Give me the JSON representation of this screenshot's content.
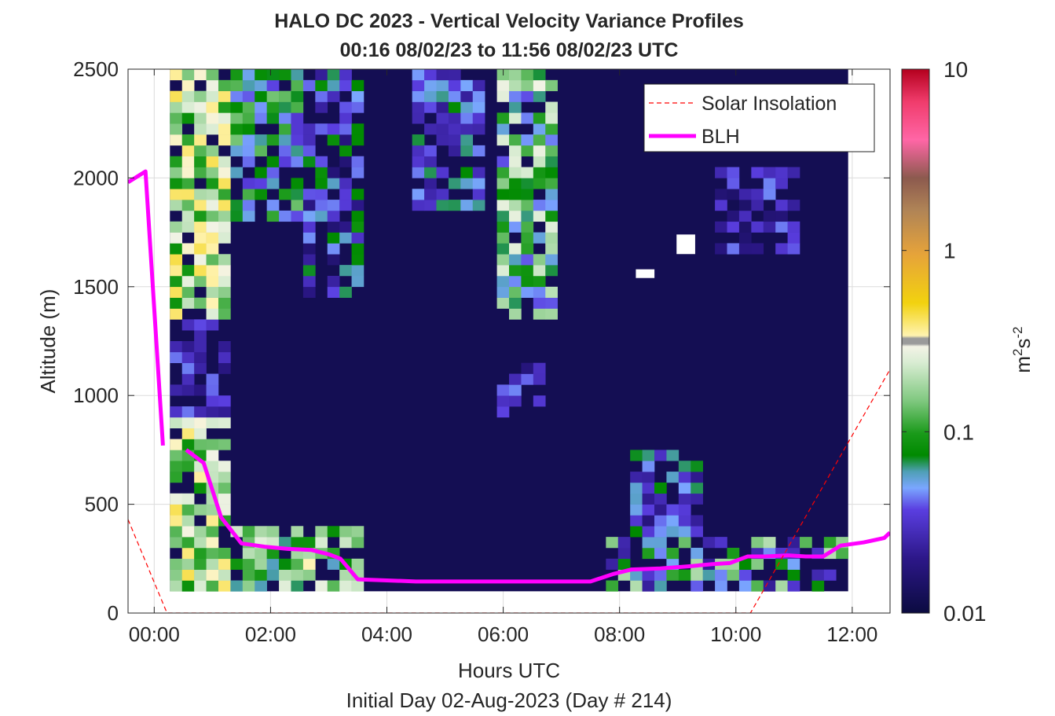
{
  "chart_data": {
    "type": "heatmap",
    "title": "HALO DC 2023 - Vertical Velocity Variance Profiles",
    "subtitle": "00:16 08/02/23 to 11:56 08/02/23  UTC",
    "xlabel": "Hours UTC",
    "xlabel2": "Initial Day 02-Aug-2023 (Day # 214)",
    "ylabel": "Altitude (m)",
    "colorbar_label_base": "m",
    "colorbar_label_sup1": "2",
    "colorbar_label_mid": "s",
    "colorbar_label_sup2": "-2",
    "xlim": [
      -0.45,
      12.65
    ],
    "ylim": [
      0,
      2500
    ],
    "x_ticks": [
      0,
      2,
      4,
      6,
      8,
      10,
      12
    ],
    "x_tick_labels": [
      "00:00",
      "02:00",
      "04:00",
      "06:00",
      "08:00",
      "10:00",
      "12:00"
    ],
    "y_ticks": [
      0,
      500,
      1000,
      1500,
      2000,
      2500
    ],
    "y_tick_labels": [
      "0",
      "500",
      "1000",
      "1500",
      "2000",
      "2500"
    ],
    "colorbar_scale": "log",
    "colorbar_range": [
      0.01,
      10
    ],
    "colorbar_ticks": [
      0.01,
      0.1,
      1,
      10
    ],
    "colorbar_tick_labels": [
      "0.01",
      "0.1",
      "1",
      "10"
    ],
    "grid": true,
    "legend_position": "top-right",
    "legend": [
      {
        "label": "Solar Insolation",
        "color": "#ff0000",
        "style": "dashed"
      },
      {
        "label": "BLH",
        "color": "#ff00ff",
        "style": "solid"
      }
    ],
    "heatmap": {
      "x_start": 0.27,
      "x_end": 11.93,
      "y_bottom": 100,
      "y_top": 2500,
      "cell_height_m": 50,
      "background_value": 0.012,
      "no_data_regions": [
        {
          "x": [
            8.28,
            8.6
          ],
          "y": [
            1540,
            1580
          ]
        },
        {
          "x": [
            8.98,
            9.3
          ],
          "y": [
            1650,
            1740
          ]
        }
      ]
    },
    "series": [
      {
        "name": "BLH",
        "color": "#ff00ff",
        "segments": [
          {
            "x": [
              -0.45,
              -0.15,
              0.15
            ],
            "y": [
              1980,
              2030,
              770
            ]
          },
          {
            "x": [
              0.55,
              0.85,
              1.15,
              1.5,
              1.9,
              2.3,
              2.7,
              3.0,
              3.2,
              3.5,
              4.0,
              4.5,
              5.0,
              6.0,
              7.0,
              7.5,
              7.9,
              8.2,
              8.7,
              9.2,
              9.6,
              9.9,
              10.2,
              10.5,
              10.9,
              11.2,
              11.5,
              11.8,
              12.2,
              12.55,
              12.65
            ],
            "y": [
              750,
              690,
              440,
              320,
              305,
              295,
              290,
              270,
              250,
              155,
              150,
              145,
              145,
              145,
              145,
              145,
              180,
              200,
              205,
              215,
              225,
              230,
              260,
              260,
              265,
              260,
              260,
              310,
              325,
              345,
              370
            ]
          }
        ]
      },
      {
        "name": "Solar Insolation",
        "color": "#ff0000",
        "x": [
          -0.45,
          0.22,
          10.25,
          12.65
        ],
        "y": [
          430,
          0,
          0,
          1120
        ]
      }
    ]
  }
}
